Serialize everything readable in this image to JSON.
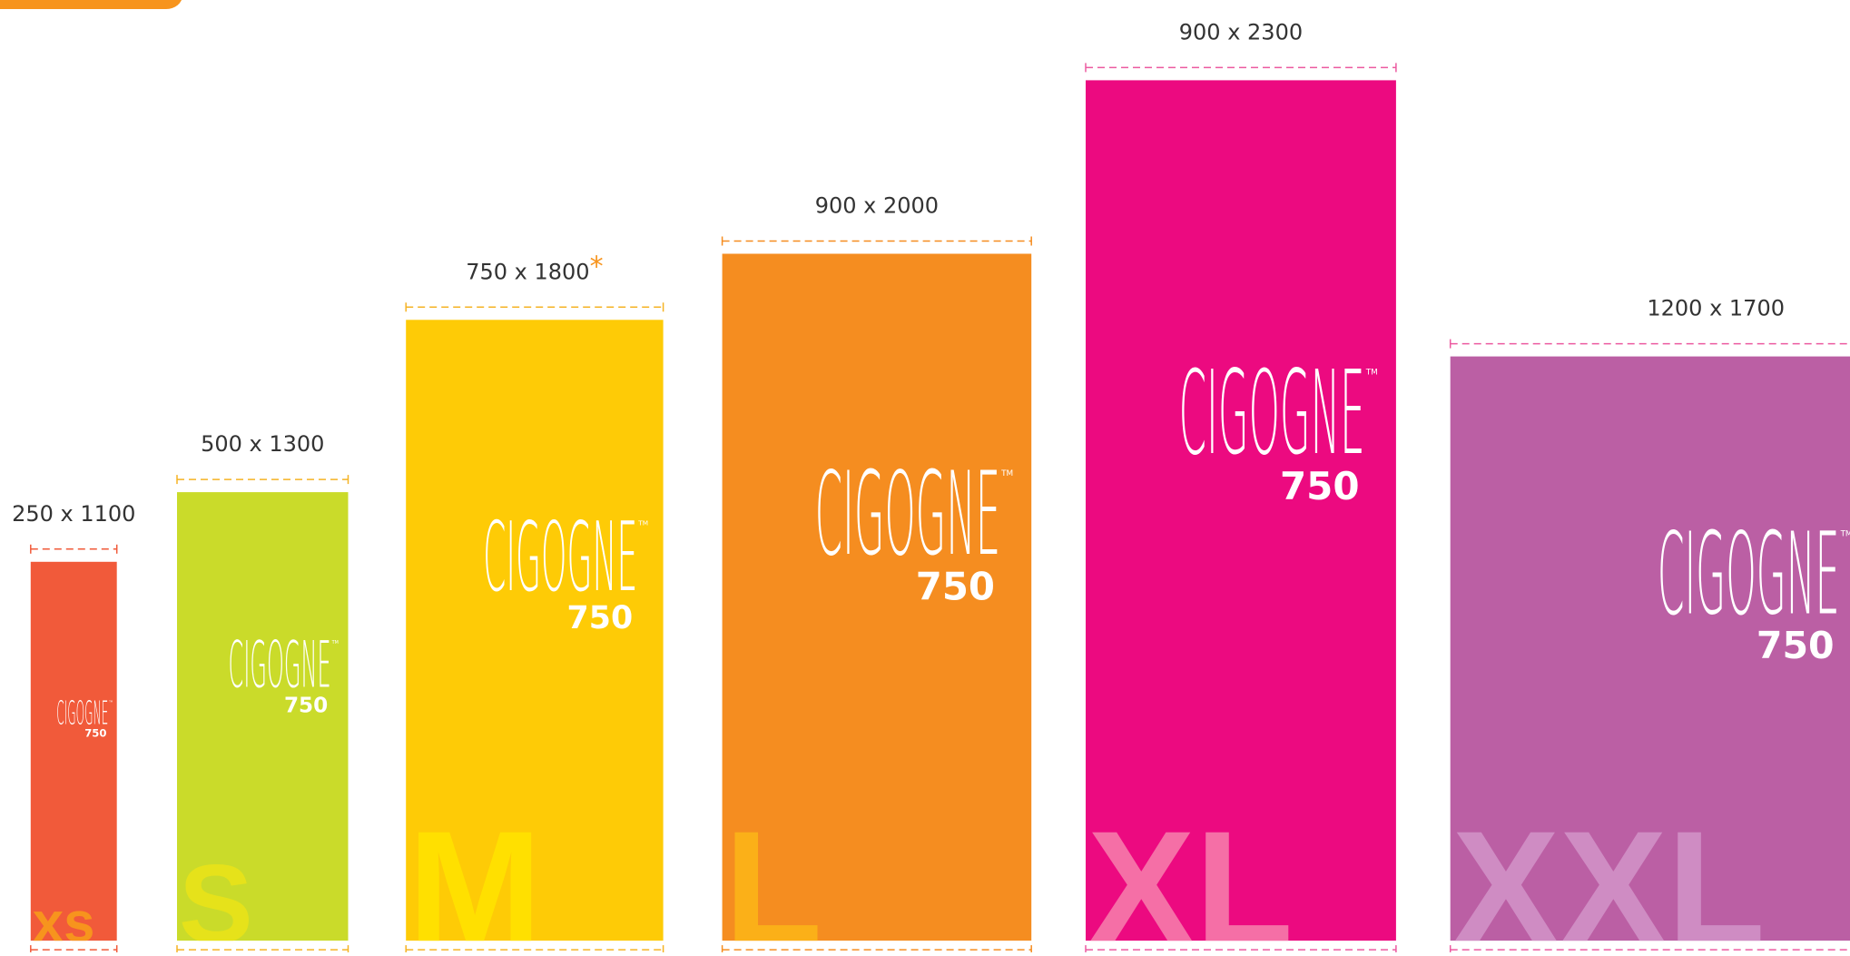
{
  "items": [
    {
      "dimensions": "250 x 1100",
      "size": "xs",
      "color": "#f15a3a",
      "letter_color": "#f7941d",
      "guide_color": "#f15a3a"
    },
    {
      "dimensions": "500 x 1300",
      "size": "S",
      "color": "#cadb2a",
      "letter_color": "#e6e21a",
      "guide_color": "#f5b324"
    },
    {
      "dimensions": "750 x 1800",
      "note": "*",
      "size": "M",
      "color": "#fecb06",
      "letter_color": "#ffe000",
      "guide_color": "#f5b324"
    },
    {
      "dimensions": "900 x 2000",
      "size": "L",
      "color": "#f58d20",
      "letter_color": "#fbb018",
      "guide_color": "#f58d20"
    },
    {
      "dimensions": "900 x 2300",
      "size": "XL",
      "color": "#ec0a80",
      "letter_color": "#f56fa6",
      "guide_color": "#ec5aa0"
    },
    {
      "dimensions": "1200 x 1700",
      "size": "XXL",
      "color": "#bb5fa4",
      "letter_color": "#cf8cc3",
      "guide_color": "#ec5aa0"
    }
  ],
  "logo": {
    "brand": "CIGOGNE",
    "model": "750",
    "tm": "TM"
  },
  "note_color": "#f7941d"
}
